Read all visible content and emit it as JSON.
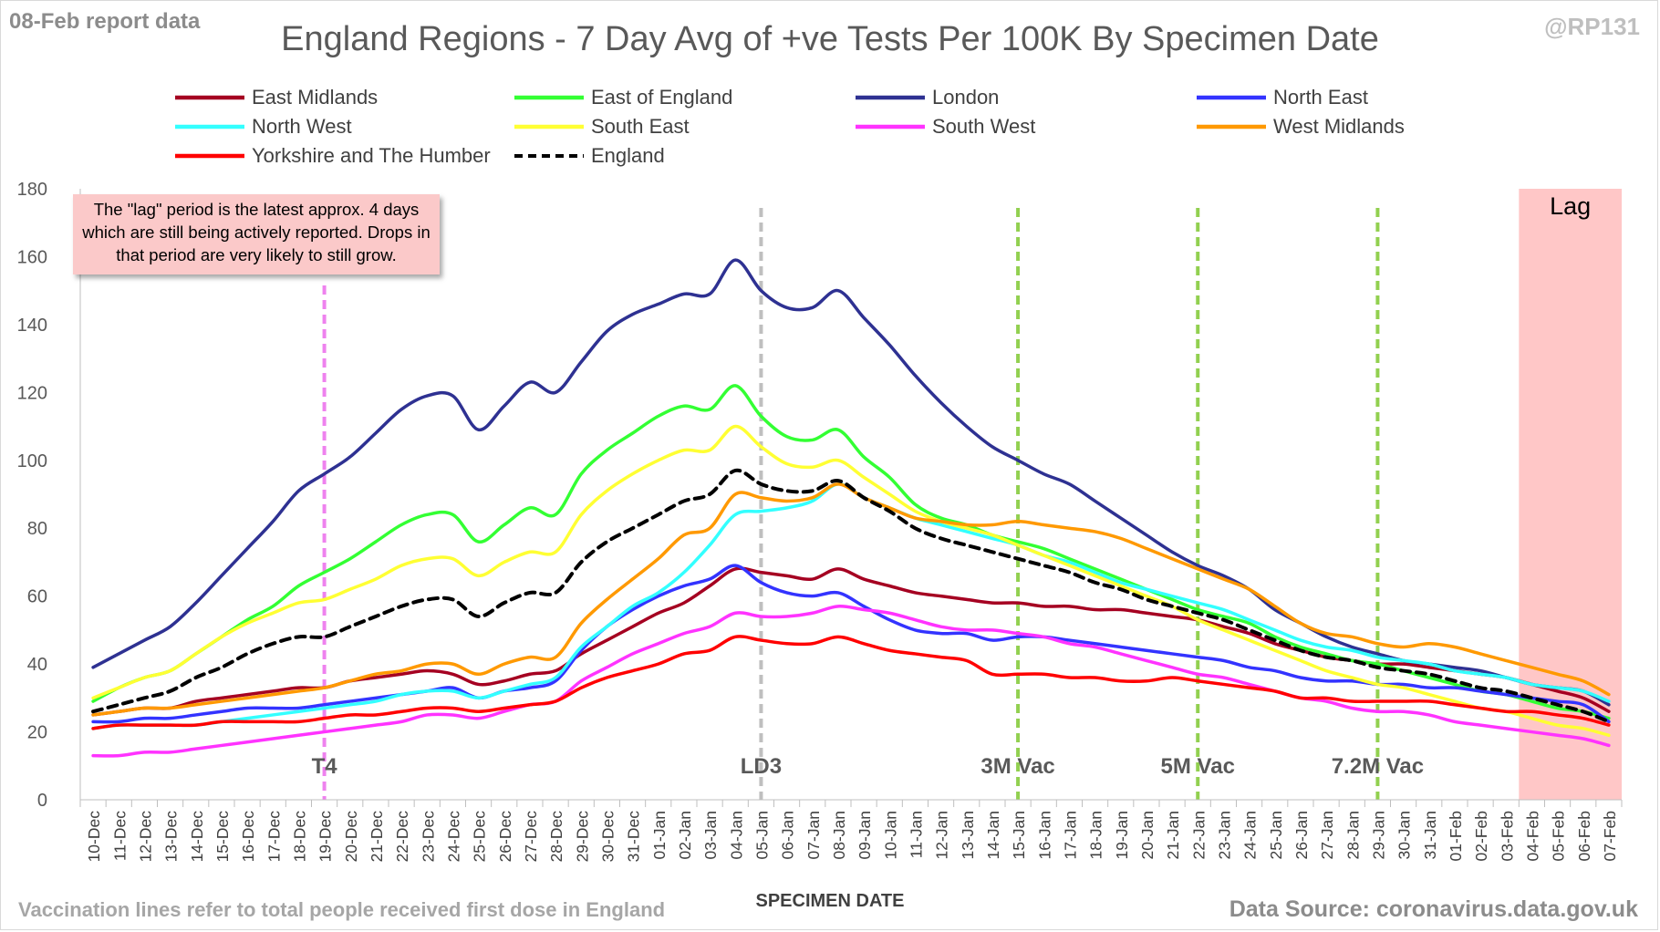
{
  "header": {
    "report_date": "08-Feb report data",
    "handle": "@RP131",
    "title": "England Regions - 7 Day Avg of +ve Tests Per 100K By Specimen Date"
  },
  "footer": {
    "note": "Vaccination lines refer to total people received first dose in England",
    "source": "Data Source: coronavirus.data.gov.uk"
  },
  "annotation": {
    "lag_note": "The \"lag\" period is the latest approx. 4 days which are still being actively reported. Drops in that period are very likely to still grow.",
    "lag_label": "Lag"
  },
  "colors": {
    "East Midlands": "#a50021",
    "East of England": "#33ff33",
    "London": "#2e3192",
    "North East": "#3333ff",
    "North West": "#33ffff",
    "South East": "#ffff33",
    "South West": "#ff33ff",
    "West Midlands": "#ff9900",
    "Yorkshire and The Humber": "#ff0000",
    "England": "#000000",
    "lag_shade": "#ffc7c7"
  },
  "chart_data": {
    "type": "line",
    "xlabel": "SPECIMEN DATE",
    "ylabel": "",
    "ylim": [
      0,
      180
    ],
    "yticks": [
      0,
      20,
      40,
      60,
      80,
      100,
      120,
      140,
      160,
      180
    ],
    "grid": false,
    "legend_position": "top",
    "categories": [
      "10-Dec",
      "11-Dec",
      "12-Dec",
      "13-Dec",
      "14-Dec",
      "15-Dec",
      "16-Dec",
      "17-Dec",
      "18-Dec",
      "19-Dec",
      "20-Dec",
      "21-Dec",
      "22-Dec",
      "23-Dec",
      "24-Dec",
      "25-Dec",
      "26-Dec",
      "27-Dec",
      "28-Dec",
      "29-Dec",
      "30-Dec",
      "31-Dec",
      "01-Jan",
      "02-Jan",
      "03-Jan",
      "04-Jan",
      "05-Jan",
      "06-Jan",
      "07-Jan",
      "08-Jan",
      "09-Jan",
      "10-Jan",
      "11-Jan",
      "12-Jan",
      "13-Jan",
      "14-Jan",
      "15-Jan",
      "16-Jan",
      "17-Jan",
      "18-Jan",
      "19-Jan",
      "20-Jan",
      "21-Jan",
      "22-Jan",
      "23-Jan",
      "24-Jan",
      "25-Jan",
      "26-Jan",
      "27-Jan",
      "28-Jan",
      "29-Jan",
      "30-Jan",
      "31-Jan",
      "01-Feb",
      "02-Feb",
      "03-Feb",
      "04-Feb",
      "05-Feb",
      "06-Feb",
      "07-Feb"
    ],
    "markers": [
      {
        "label": "T4",
        "category": "19-Dec",
        "color": "#ee82ee"
      },
      {
        "label": "LD3",
        "category": "05-Jan",
        "color": "#bfbfbf"
      },
      {
        "label": "3M Vac",
        "category": "15-Jan",
        "color": "#92d050"
      },
      {
        "label": "5M Vac",
        "category": "22-Jan",
        "color": "#92d050"
      },
      {
        "label": "7.2M Vac",
        "category": "29-Jan",
        "color": "#92d050"
      }
    ],
    "lag_start": "04-Feb",
    "series": [
      {
        "name": "East Midlands",
        "values": [
          25,
          26,
          27,
          27,
          29,
          30,
          31,
          32,
          33,
          33,
          35,
          36,
          37,
          38,
          37,
          34,
          35,
          37,
          38,
          43,
          47,
          51,
          55,
          58,
          63,
          68,
          67,
          66,
          65,
          68,
          65,
          63,
          61,
          60,
          59,
          58,
          58,
          57,
          57,
          56,
          56,
          55,
          54,
          53,
          51,
          49,
          46,
          44,
          42,
          41,
          40,
          40,
          39,
          38,
          37,
          36,
          34,
          32,
          30,
          26
        ]
      },
      {
        "name": "East of England",
        "values": [
          29,
          33,
          36,
          38,
          43,
          48,
          53,
          57,
          63,
          67,
          71,
          76,
          81,
          84,
          84,
          76,
          81,
          86,
          84,
          96,
          103,
          108,
          113,
          116,
          115,
          122,
          113,
          107,
          106,
          109,
          101,
          95,
          87,
          83,
          81,
          78,
          76,
          74,
          71,
          68,
          65,
          62,
          59,
          56,
          54,
          52,
          48,
          45,
          43,
          41,
          40,
          38,
          36,
          34,
          32,
          31,
          29,
          27,
          26,
          24
        ]
      },
      {
        "name": "London",
        "values": [
          39,
          43,
          47,
          51,
          58,
          66,
          74,
          82,
          91,
          96,
          101,
          108,
          115,
          119,
          119,
          109,
          116,
          123,
          120,
          129,
          138,
          143,
          146,
          149,
          149,
          159,
          150,
          145,
          145,
          150,
          142,
          134,
          125,
          117,
          110,
          104,
          100,
          96,
          93,
          88,
          83,
          78,
          73,
          69,
          66,
          62,
          56,
          52,
          48,
          45,
          43,
          41,
          40,
          39,
          38,
          36,
          34,
          33,
          32,
          28
        ]
      },
      {
        "name": "North East",
        "values": [
          23,
          23,
          24,
          24,
          25,
          26,
          27,
          27,
          27,
          28,
          29,
          30,
          31,
          32,
          33,
          30,
          32,
          33,
          35,
          44,
          51,
          56,
          60,
          63,
          65,
          69,
          64,
          61,
          60,
          61,
          57,
          53,
          50,
          49,
          49,
          47,
          48,
          48,
          47,
          46,
          45,
          44,
          43,
          42,
          41,
          39,
          38,
          36,
          35,
          35,
          34,
          34,
          33,
          33,
          32,
          31,
          30,
          29,
          28,
          23
        ]
      },
      {
        "name": "North West",
        "values": [
          21,
          22,
          22,
          22,
          22,
          23,
          24,
          25,
          26,
          27,
          28,
          29,
          31,
          32,
          32,
          30,
          32,
          34,
          36,
          45,
          51,
          57,
          61,
          67,
          75,
          84,
          85,
          86,
          88,
          93,
          89,
          86,
          83,
          81,
          79,
          77,
          75,
          72,
          70,
          67,
          64,
          62,
          60,
          58,
          56,
          53,
          50,
          47,
          45,
          44,
          42,
          41,
          40,
          38,
          37,
          36,
          34,
          33,
          32,
          29
        ]
      },
      {
        "name": "South East",
        "values": [
          30,
          33,
          36,
          38,
          43,
          48,
          52,
          55,
          58,
          59,
          62,
          65,
          69,
          71,
          71,
          66,
          70,
          73,
          73,
          84,
          91,
          96,
          100,
          103,
          103,
          110,
          104,
          99,
          98,
          100,
          95,
          90,
          85,
          82,
          80,
          78,
          75,
          72,
          69,
          66,
          63,
          60,
          57,
          53,
          50,
          47,
          44,
          41,
          38,
          36,
          34,
          33,
          31,
          29,
          27,
          26,
          24,
          22,
          21,
          19
        ]
      },
      {
        "name": "South West",
        "values": [
          13,
          13,
          14,
          14,
          15,
          16,
          17,
          18,
          19,
          20,
          21,
          22,
          23,
          25,
          25,
          24,
          26,
          28,
          29,
          35,
          39,
          43,
          46,
          49,
          51,
          55,
          54,
          54,
          55,
          57,
          56,
          55,
          53,
          51,
          50,
          50,
          49,
          48,
          46,
          45,
          43,
          41,
          39,
          37,
          36,
          34,
          32,
          30,
          29,
          27,
          26,
          26,
          25,
          23,
          22,
          21,
          20,
          19,
          18,
          16
        ]
      },
      {
        "name": "West Midlands",
        "values": [
          25,
          26,
          27,
          27,
          28,
          29,
          30,
          31,
          32,
          33,
          35,
          37,
          38,
          40,
          40,
          37,
          40,
          42,
          42,
          52,
          59,
          65,
          71,
          78,
          80,
          90,
          89,
          88,
          89,
          93,
          89,
          86,
          83,
          82,
          81,
          81,
          82,
          81,
          80,
          79,
          77,
          74,
          71,
          68,
          65,
          62,
          57,
          52,
          49,
          48,
          46,
          45,
          46,
          45,
          43,
          41,
          39,
          37,
          35,
          31
        ]
      },
      {
        "name": "Yorkshire and The Humber",
        "values": [
          21,
          22,
          22,
          22,
          22,
          23,
          23,
          23,
          23,
          24,
          25,
          25,
          26,
          27,
          27,
          26,
          27,
          28,
          29,
          33,
          36,
          38,
          40,
          43,
          44,
          48,
          47,
          46,
          46,
          48,
          46,
          44,
          43,
          42,
          41,
          37,
          37,
          37,
          36,
          36,
          35,
          35,
          36,
          35,
          34,
          33,
          32,
          30,
          30,
          29,
          29,
          29,
          29,
          28,
          27,
          26,
          26,
          25,
          24,
          22
        ]
      },
      {
        "name": "England",
        "values": [
          26,
          28,
          30,
          32,
          36,
          39,
          43,
          46,
          48,
          48,
          51,
          54,
          57,
          59,
          59,
          54,
          58,
          61,
          61,
          70,
          76,
          80,
          84,
          88,
          90,
          97,
          93,
          91,
          91,
          94,
          89,
          85,
          80,
          77,
          75,
          73,
          71,
          69,
          67,
          64,
          62,
          59,
          57,
          55,
          53,
          50,
          47,
          44,
          42,
          41,
          39,
          38,
          37,
          35,
          33,
          32,
          30,
          28,
          26,
          23
        ]
      }
    ]
  }
}
